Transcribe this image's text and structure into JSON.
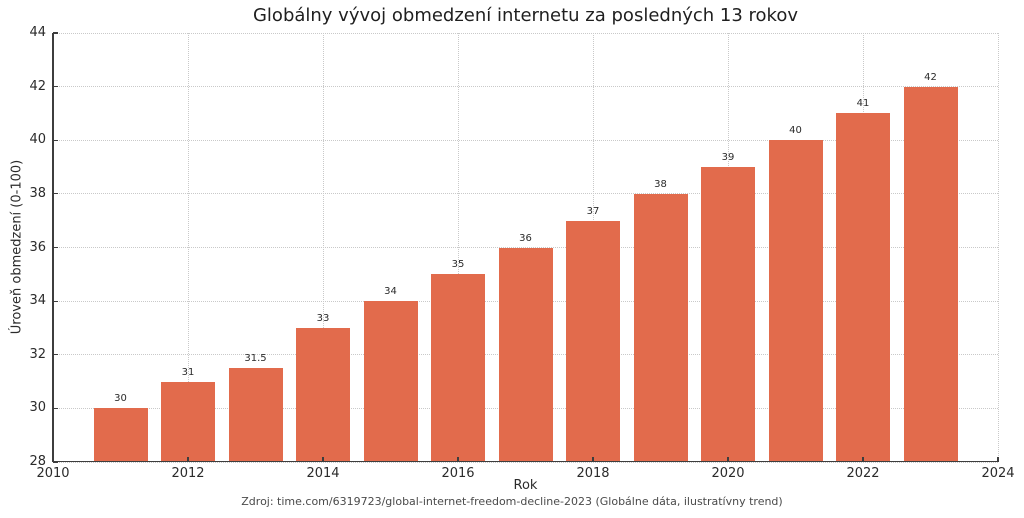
{
  "chart_data": {
    "type": "bar",
    "title": "Globálny vývoj obmedzení internetu za posledných 13 rokov",
    "xlabel": "Rok",
    "ylabel": "Úroveň obmedzení (0-100)",
    "source_note": "Zdroj: time.com/6319723/global-internet-freedom-decline-2023 (Globálne dáta, ilustratívny trend)",
    "x": [
      2011,
      2012,
      2013,
      2014,
      2015,
      2016,
      2017,
      2018,
      2019,
      2020,
      2021,
      2022,
      2023
    ],
    "values": [
      30,
      31,
      31.5,
      33,
      34,
      35,
      36,
      37,
      38,
      39,
      40,
      41,
      42
    ],
    "bar_labels": [
      "30",
      "31",
      "31.5",
      "33",
      "34",
      "35",
      "36",
      "37",
      "38",
      "39",
      "40",
      "41",
      "42"
    ],
    "xlim": [
      2010,
      2024
    ],
    "ylim": [
      28,
      44
    ],
    "xticks": [
      2010,
      2012,
      2014,
      2016,
      2018,
      2020,
      2022,
      2024
    ],
    "yticks": [
      28,
      30,
      32,
      34,
      36,
      38,
      40,
      42,
      44
    ],
    "bar_width_ratio": 0.8,
    "grid": true,
    "grid_style": "dotted",
    "tick_direction": "in",
    "legend_position": "none",
    "colors": {
      "bar": "#e26b4c",
      "grid": "#c9c9c9",
      "axis": "#3d3d3d",
      "text": "#2b2b2b",
      "source_text": "#4a4a4a",
      "background": "#ffffff"
    }
  }
}
